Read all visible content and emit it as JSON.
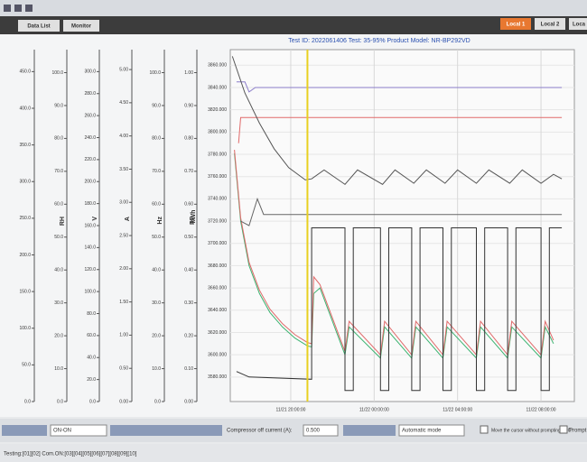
{
  "tabs": [
    "Data List",
    "Monitor"
  ],
  "local_tabs": [
    "Local 1",
    "Local 2",
    "Loca"
  ],
  "chart_data": {
    "type": "line",
    "title": "Test ID: 2022061406   Test: 35-95%   Product Model: NR-BP292VD",
    "xlim": [
      17.1,
      33.6
    ],
    "xticks": [
      {
        "value": 20,
        "label": "11/21 20:00:00"
      },
      {
        "value": 24,
        "label": "11/22 00:00:00"
      },
      {
        "value": 28,
        "label": "11/22 04:00:00"
      },
      {
        "value": 32,
        "label": "11/22 08:00:00"
      }
    ],
    "ylim": [
      3558,
      3874
    ],
    "y_label": "kWh",
    "yticks": [
      {
        "value": 3580,
        "label": "3580.000"
      },
      {
        "value": 3600,
        "label": "3600.000"
      },
      {
        "value": 3620,
        "label": "3620.000"
      },
      {
        "value": 3640,
        "label": "3640.000"
      },
      {
        "value": 3660,
        "label": "3660.000"
      },
      {
        "value": 3680,
        "label": "3680.000"
      },
      {
        "value": 3700,
        "label": "3700.000"
      },
      {
        "value": 3720,
        "label": "3720.000"
      },
      {
        "value": 3740,
        "label": "3740.000"
      },
      {
        "value": 3760,
        "label": "3760.000"
      },
      {
        "value": 3780,
        "label": "3780.000"
      },
      {
        "value": 3800,
        "label": "3800.000"
      },
      {
        "value": 3820,
        "label": "3820.000"
      },
      {
        "value": 3840,
        "label": "3840.000"
      },
      {
        "value": 3860,
        "label": "3860.000"
      }
    ],
    "grid": true,
    "cursor": 20.8,
    "cursor_color": "#e8d020",
    "side_axes": [
      {
        "ylim": [
          0,
          480
        ],
        "yticks": [
          {
            "value": 0,
            "label": "0.0"
          },
          {
            "value": 50,
            "label": "50.0"
          },
          {
            "value": 100,
            "label": "100.0"
          },
          {
            "value": 150,
            "label": "150.0"
          },
          {
            "value": 200,
            "label": "200.0"
          },
          {
            "value": 250,
            "label": "250.0"
          },
          {
            "value": 300,
            "label": "300.0"
          },
          {
            "value": 350,
            "label": "350.0"
          },
          {
            "value": 400,
            "label": "400.0"
          },
          {
            "value": 450,
            "label": "450.0"
          }
        ]
      },
      {
        "label": "RH",
        "ylim": [
          0,
          107
        ],
        "yticks": [
          {
            "value": 0,
            "label": "0.0"
          },
          {
            "value": 10,
            "label": "10.0"
          },
          {
            "value": 20,
            "label": "20.0"
          },
          {
            "value": 30,
            "label": "30.0"
          },
          {
            "value": 40,
            "label": "40.0"
          },
          {
            "value": 50,
            "label": "50.0"
          },
          {
            "value": 60,
            "label": "60.0"
          },
          {
            "value": 70,
            "label": "70.0"
          },
          {
            "value": 80,
            "label": "80.0"
          },
          {
            "value": 90,
            "label": "90.0"
          },
          {
            "value": 100,
            "label": "100.0"
          }
        ]
      },
      {
        "label": "V",
        "ylim": [
          0,
          320
        ],
        "yticks": [
          {
            "value": 0,
            "label": "0.0"
          },
          {
            "value": 20,
            "label": "20.0"
          },
          {
            "value": 40,
            "label": "40.0"
          },
          {
            "value": 60,
            "label": "60.0"
          },
          {
            "value": 80,
            "label": "80.0"
          },
          {
            "value": 100,
            "label": "100.0"
          },
          {
            "value": 120,
            "label": "120.0"
          },
          {
            "value": 140,
            "label": "140.0"
          },
          {
            "value": 160,
            "label": "160.0"
          },
          {
            "value": 180,
            "label": "180.0"
          },
          {
            "value": 200,
            "label": "200.0"
          },
          {
            "value": 220,
            "label": "220.0"
          },
          {
            "value": 240,
            "label": "240.0"
          },
          {
            "value": 260,
            "label": "260.0"
          },
          {
            "value": 280,
            "label": "280.0"
          },
          {
            "value": 300,
            "label": "300.0"
          }
        ]
      },
      {
        "label": "A",
        "ylim": [
          0,
          5.3
        ],
        "yticks": [
          {
            "value": 0,
            "label": "0.00"
          },
          {
            "value": 0.5,
            "label": "0.50"
          },
          {
            "value": 1,
            "label": "1.00"
          },
          {
            "value": 1.5,
            "label": "1.50"
          },
          {
            "value": 2,
            "label": "2.00"
          },
          {
            "value": 2.5,
            "label": "2.50"
          },
          {
            "value": 3,
            "label": "3.00"
          },
          {
            "value": 3.5,
            "label": "3.50"
          },
          {
            "value": 4,
            "label": "4.00"
          },
          {
            "value": 4.5,
            "label": "4.50"
          },
          {
            "value": 5,
            "label": "5.00"
          }
        ]
      },
      {
        "label": "Hz",
        "ylim": [
          0,
          107
        ],
        "yticks": [
          {
            "value": 0,
            "label": "0.0"
          },
          {
            "value": 10,
            "label": "10.0"
          },
          {
            "value": 20,
            "label": "20.0"
          },
          {
            "value": 30,
            "label": "30.0"
          },
          {
            "value": 40,
            "label": "40.0"
          },
          {
            "value": 50,
            "label": "50.0"
          },
          {
            "value": 60,
            "label": "60.0"
          },
          {
            "value": 70,
            "label": "70.0"
          },
          {
            "value": 80,
            "label": "80.0"
          },
          {
            "value": 90,
            "label": "90.0"
          },
          {
            "value": 100,
            "label": "100.0"
          }
        ]
      },
      {
        "label": "PF",
        "ylim": [
          0,
          1.07
        ],
        "yticks": [
          {
            "value": 0,
            "label": "0.00"
          },
          {
            "value": 0.1,
            "label": "0.10"
          },
          {
            "value": 0.2,
            "label": "0.20"
          },
          {
            "value": 0.3,
            "label": "0.30"
          },
          {
            "value": 0.4,
            "label": "0.40"
          },
          {
            "value": 0.5,
            "label": "0.50"
          },
          {
            "value": 0.6,
            "label": "0.60"
          },
          {
            "value": 0.7,
            "label": "0.70"
          },
          {
            "value": 0.8,
            "label": "0.80"
          },
          {
            "value": 0.9,
            "label": "0.90"
          },
          {
            "value": 1,
            "label": "1.00"
          }
        ]
      }
    ],
    "series": [
      {
        "color": "#8a7cc8",
        "x": [
          17.4,
          17.8,
          18.0,
          18.3,
          33.0
        ],
        "values": [
          3845,
          3845,
          3836,
          3840,
          3840
        ]
      },
      {
        "color": "#e06a6a",
        "x": [
          17.5,
          17.6,
          17.7,
          33.0
        ],
        "values": [
          3790,
          3813,
          3813,
          3813
        ]
      },
      {
        "color": "#555555",
        "x": [
          17.2,
          17.8,
          18.5,
          19.2,
          19.9,
          20.7,
          21.0,
          21.6,
          22.6,
          23.2,
          24.4,
          25.0,
          25.9,
          26.5,
          27.4,
          28.0,
          28.9,
          29.5,
          30.5,
          31.1,
          32.0,
          32.6,
          33.0
        ],
        "values": [
          3868,
          3835,
          3808,
          3785,
          3768,
          3757,
          3758,
          3766,
          3753,
          3766,
          3753,
          3766,
          3754,
          3766,
          3754,
          3766,
          3754,
          3766,
          3754,
          3766,
          3754,
          3762,
          3758
        ]
      },
      {
        "color": "#3cb371",
        "x": [
          17.3,
          17.6,
          18.0,
          18.5,
          19.0,
          19.6,
          20.2,
          20.8,
          21.0,
          21.1,
          21.4,
          22.6,
          22.8,
          24.3,
          24.5,
          25.8,
          26.0,
          27.3,
          27.5,
          28.9,
          29.1,
          30.4,
          30.6,
          32.0,
          32.2,
          32.6
        ],
        "values": [
          3781,
          3720,
          3680,
          3655,
          3638,
          3625,
          3615,
          3608,
          3607,
          3655,
          3660,
          3600,
          3625,
          3597,
          3625,
          3597,
          3625,
          3597,
          3625,
          3597,
          3625,
          3597,
          3625,
          3597,
          3625,
          3610
        ]
      },
      {
        "color": "#e06a6a",
        "x": [
          17.3,
          17.6,
          18.0,
          18.5,
          19.0,
          19.6,
          20.2,
          20.8,
          21.0,
          21.1,
          21.4,
          22.6,
          22.8,
          24.3,
          24.5,
          25.8,
          26.0,
          27.3,
          27.5,
          28.9,
          29.1,
          30.4,
          30.6,
          32.0,
          32.2,
          32.6
        ],
        "values": [
          3784,
          3723,
          3683,
          3658,
          3641,
          3628,
          3618,
          3611,
          3610,
          3670,
          3663,
          3603,
          3630,
          3600,
          3630,
          3600,
          3630,
          3600,
          3630,
          3600,
          3630,
          3600,
          3630,
          3600,
          3630,
          3613
        ]
      },
      {
        "color": "#333333",
        "x": [
          17.4,
          18.0,
          21.0,
          21.0,
          22.6,
          22.6,
          23.0,
          23.0,
          24.3,
          24.3,
          24.7,
          24.7,
          25.8,
          25.8,
          26.2,
          26.2,
          27.3,
          27.3,
          27.7,
          27.7,
          28.9,
          28.9,
          29.3,
          29.3,
          30.4,
          30.4,
          30.8,
          30.8,
          32.0,
          32.0,
          32.4,
          32.4,
          33.0
        ],
        "values": [
          3585,
          3580,
          3578,
          3714,
          3714,
          3568,
          3568,
          3714,
          3714,
          3568,
          3568,
          3714,
          3714,
          3568,
          3568,
          3714,
          3714,
          3568,
          3568,
          3714,
          3714,
          3568,
          3568,
          3714,
          3714,
          3568,
          3568,
          3714,
          3714,
          3568,
          3568,
          3714,
          3714
        ]
      },
      {
        "color": "#666666",
        "x": [
          17.6,
          18.0,
          18.4,
          18.7,
          33.0
        ],
        "values": [
          3720,
          3716,
          3740,
          3726,
          3726
        ]
      }
    ]
  },
  "bottom_bar": {
    "mode_select": "ON-ON",
    "off_current_label": "Compressor off current (A):",
    "off_current_value": "0.500",
    "auto_mode": "Automatic mode",
    "move_cursor": "Move the cursor without prompting TCC.",
    "prompt": "Prompt"
  },
  "status": "Testing:[01][02]   Com.ON:[03][04][05][06][07][08][09][10]"
}
